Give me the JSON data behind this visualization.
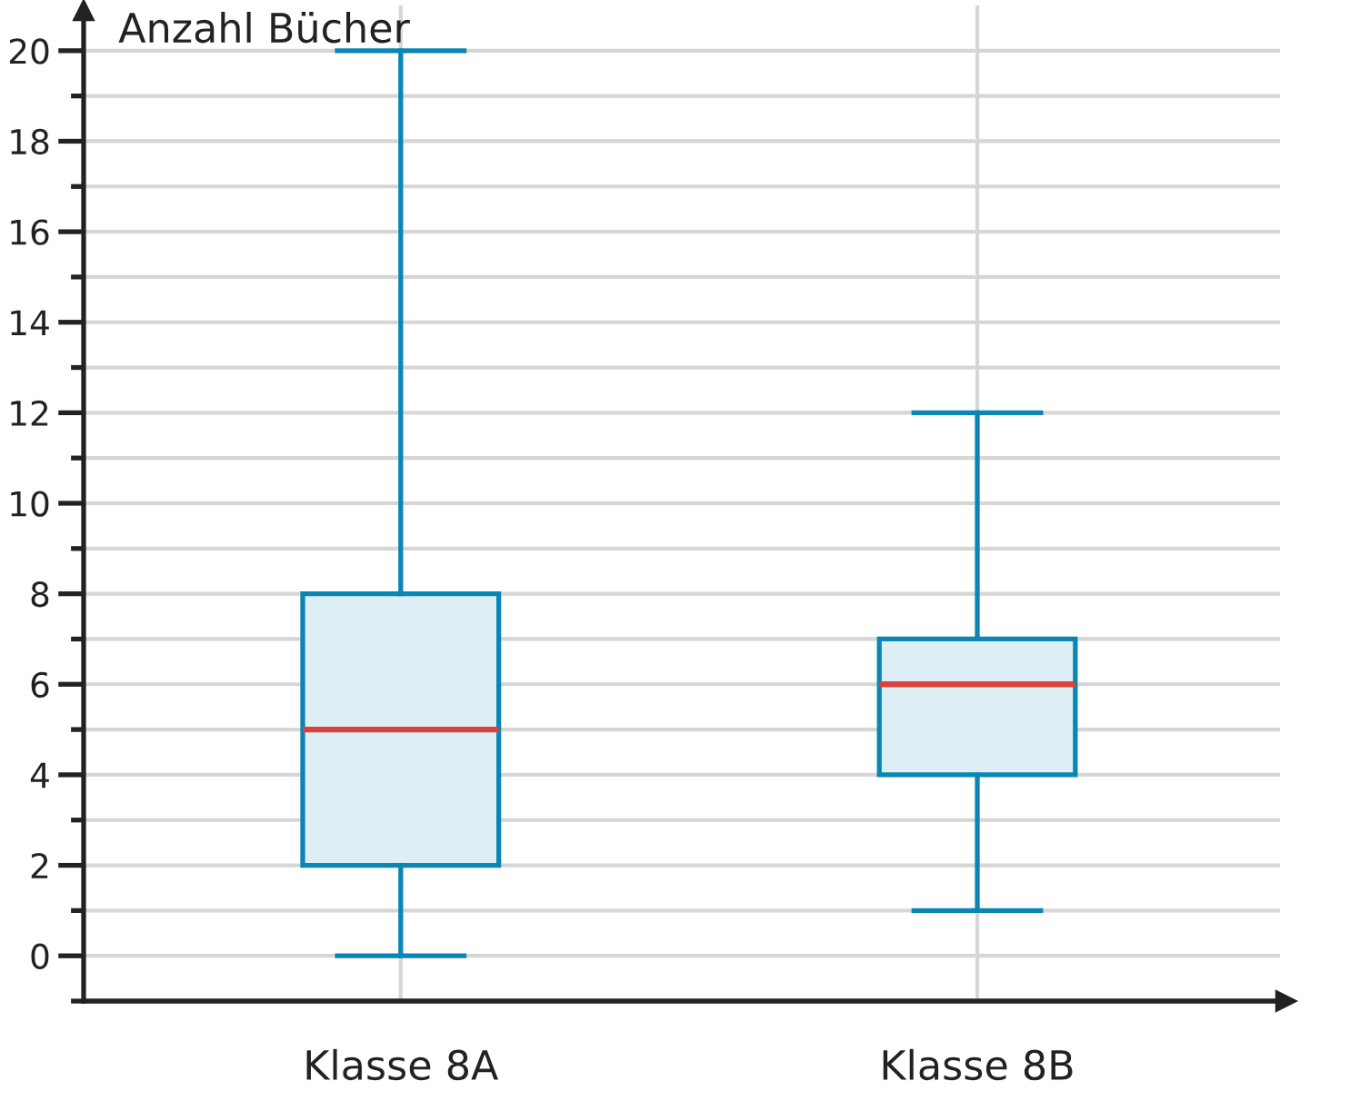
{
  "chart_data": {
    "type": "box",
    "ylabel": "Anzahl Bücher",
    "categories": [
      "Klasse 8A",
      "Klasse 8B"
    ],
    "series": [
      {
        "color": "#0a86b4",
        "boxes": [
          {
            "low": 0,
            "q1": 2,
            "median": 5,
            "q3": 8,
            "high": 20
          },
          {
            "low": 1,
            "q1": 4,
            "median": 6,
            "q3": 7,
            "high": 12
          }
        ]
      }
    ],
    "ylim": [
      -1,
      21
    ],
    "yticks": [
      {
        "value": -1,
        "label": null
      },
      0,
      {
        "value": 1,
        "label": null
      },
      2,
      {
        "value": 3,
        "label": null
      },
      4,
      {
        "value": 5,
        "label": null
      },
      6,
      {
        "value": 7,
        "label": null
      },
      8,
      {
        "value": 9,
        "label": null
      },
      10,
      {
        "value": 11,
        "label": null
      },
      12,
      {
        "value": 13,
        "label": null
      },
      14,
      {
        "value": 15,
        "label": null
      },
      16,
      {
        "value": 17,
        "label": null
      },
      18,
      {
        "value": 19,
        "label": null
      },
      20
    ],
    "grid": true
  }
}
